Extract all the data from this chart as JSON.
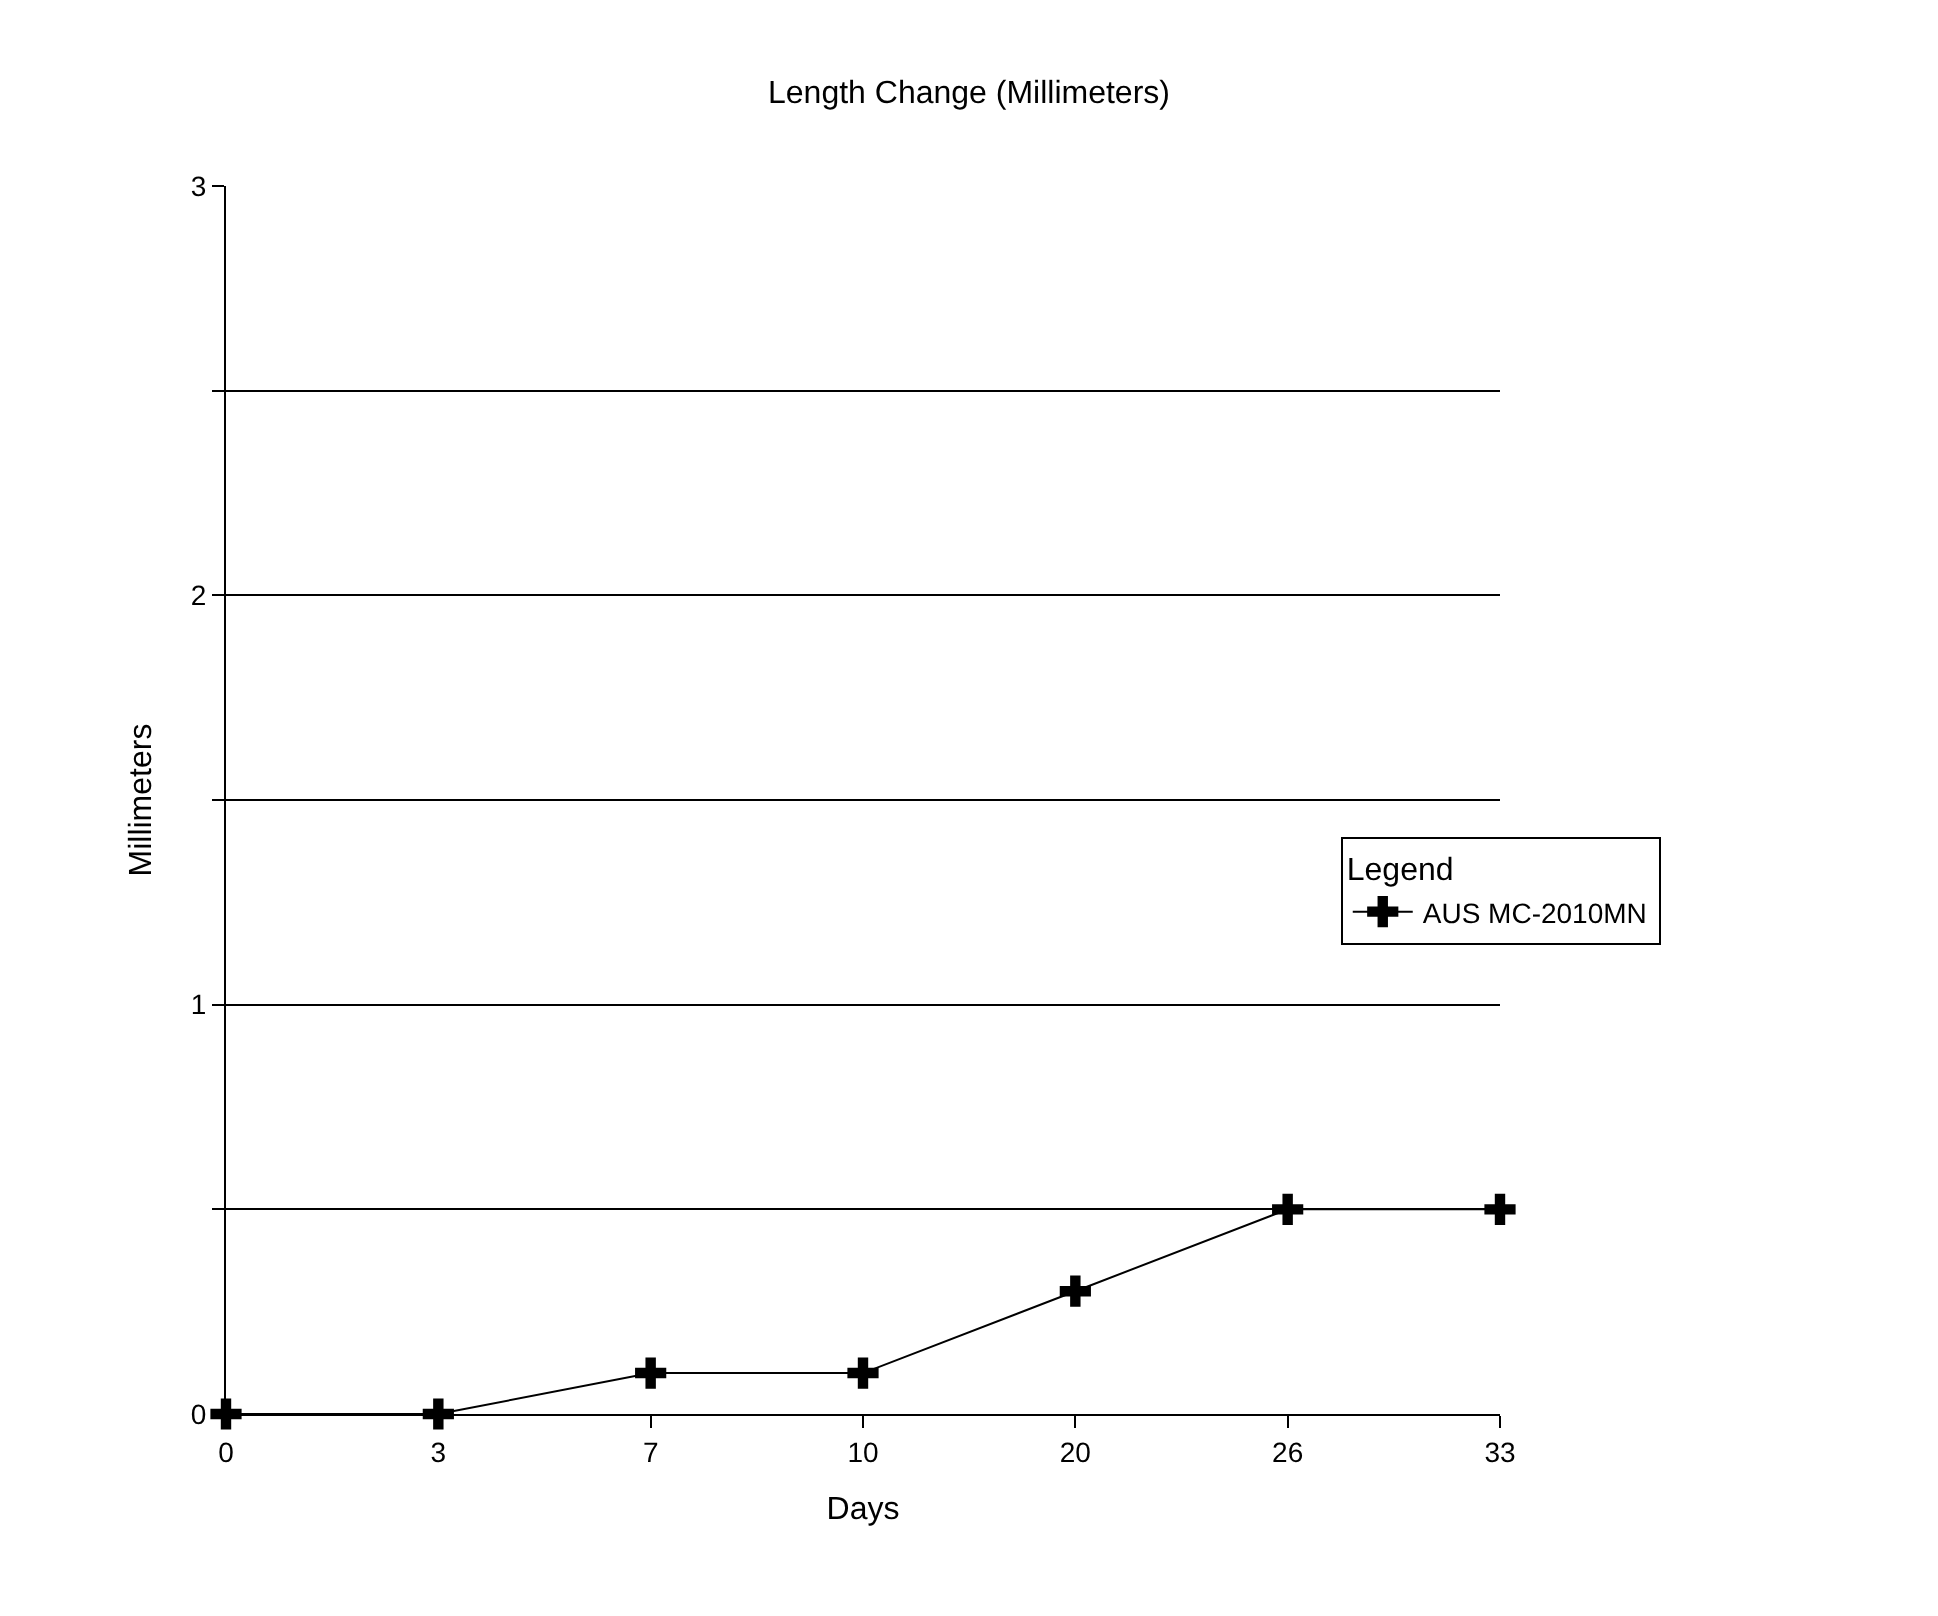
{
  "chart_data": {
    "type": "line",
    "title": "Length Change (Millimeters)",
    "xlabel": "Days",
    "ylabel": "Millimeters",
    "categories": [
      "0",
      "3",
      "7",
      "10",
      "20",
      "26",
      "33"
    ],
    "series": [
      {
        "name": "AUS MC-2010MN",
        "color": "#000000",
        "values": [
          0,
          0,
          0.1,
          0.1,
          0.3,
          0.5,
          0.5
        ]
      }
    ],
    "ylim": [
      0,
      3
    ],
    "yticks": [
      0,
      {
        "value": 0.5,
        "label": null
      },
      1,
      {
        "value": 1.5,
        "label": null
      },
      2,
      {
        "value": 2.5,
        "label": null
      },
      3
    ],
    "grid": "y",
    "legend": "right",
    "legend_title": "Legend",
    "marker": "cross",
    "line_style": "solid"
  }
}
